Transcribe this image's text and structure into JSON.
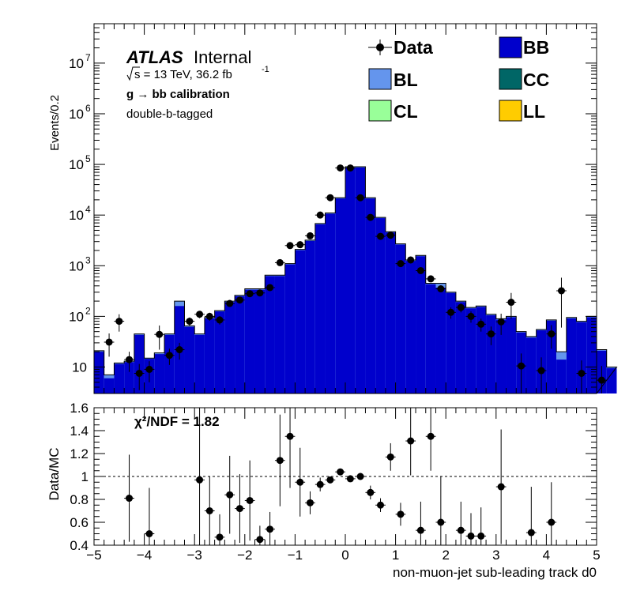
{
  "chart_data": [
    {
      "type": "histogram",
      "panel": "main",
      "ylabel": "Events/0.2",
      "ylog": true,
      "xlim": [
        -5,
        5
      ],
      "ylim": [
        3,
        60000000
      ],
      "y_ticks": [
        {
          "value": 10,
          "base": "10",
          "exp": ""
        },
        {
          "value": 100,
          "base": "10",
          "exp": "2"
        },
        {
          "value": 1000,
          "base": "10",
          "exp": "3"
        },
        {
          "value": 10000,
          "base": "10",
          "exp": "4"
        },
        {
          "value": 100000,
          "base": "10",
          "exp": "5"
        },
        {
          "value": 1000000,
          "base": "10",
          "exp": "6"
        },
        {
          "value": 10000000,
          "base": "10",
          "exp": "7"
        }
      ],
      "annotations": {
        "atlas": "ATLAS",
        "internal": "Internal",
        "energy_prefix": "s = 13 TeV, 36.2 fb",
        "energy_exp": "-1",
        "calibration": "g  → bb calibration",
        "tagging": "double-b-tagged"
      },
      "legend": {
        "data": "Data",
        "BB": "BB",
        "BL": "BL",
        "CC": "CC",
        "CL": "CL",
        "LL": "LL"
      },
      "colors": {
        "BB": "#0000cc",
        "BL": "#6495ed",
        "CC": "#006666",
        "CL": "#99ff99",
        "LL": "#ffcc00"
      },
      "bin_edges_start": -5,
      "bin_width": 0.2,
      "mc_total": [
        21,
        7,
        12,
        13,
        45,
        15,
        19,
        45,
        200,
        65,
        45,
        95,
        130,
        200,
        260,
        350,
        350,
        650,
        650,
        1100,
        2100,
        3200,
        6800,
        11000,
        22000,
        90000,
        90000,
        22000,
        9000,
        4700,
        2700,
        1300,
        1600,
        450,
        450,
        300,
        200,
        150,
        160,
        110,
        90,
        100,
        50,
        40,
        55,
        85,
        20,
        95,
        80,
        100,
        22,
        10
      ],
      "mc_bl": [
        1,
        1,
        0.5,
        0.5,
        2,
        0.5,
        1,
        2,
        40,
        3,
        2,
        4,
        5,
        8,
        10,
        14,
        14,
        25,
        25,
        40,
        80,
        120,
        250,
        400,
        800,
        3000,
        3000,
        800,
        300,
        160,
        90,
        50,
        60,
        18,
        80,
        10,
        8,
        6,
        6,
        5,
        4,
        4,
        2,
        2,
        2,
        3,
        6,
        4,
        3,
        4,
        1,
        0.5
      ],
      "data": [
        null,
        31,
        80,
        14,
        7.5,
        9,
        44,
        17,
        22,
        80,
        110,
        100,
        85,
        180,
        210,
        280,
        290,
        370,
        1150,
        2500,
        2600,
        3900,
        10000,
        22000,
        85000,
        85000,
        22000,
        9000,
        3800,
        4000,
        1100,
        1300,
        800,
        550,
        350,
        120,
        150,
        100,
        70,
        45,
        78,
        190,
        10.5,
        null,
        8.5,
        45,
        320,
        null,
        7.5,
        null,
        5.5,
        null
      ],
      "data_err": [
        null,
        15,
        30,
        6,
        4,
        4,
        22,
        6,
        8,
        15,
        18,
        18,
        16,
        22,
        25,
        28,
        30,
        35,
        60,
        90,
        90,
        110,
        180,
        260,
        500,
        500,
        260,
        170,
        110,
        110,
        60,
        65,
        50,
        40,
        30,
        30,
        30,
        25,
        20,
        18,
        35,
        100,
        8,
        null,
        7,
        22,
        260,
        null,
        6,
        null,
        5,
        null
      ]
    },
    {
      "type": "scatter",
      "panel": "ratio",
      "title": "χ²/NDF = 1.82",
      "ylabel": "Data/MC",
      "xlabel": "non-muon-jet sub-leading track d0",
      "xlim": [
        -5,
        5
      ],
      "ylim": [
        0.4,
        1.6
      ],
      "x_ticks": [
        "−5",
        "−4",
        "−3",
        "−2",
        "−1",
        "0",
        "1",
        "2",
        "3",
        "4",
        "5"
      ],
      "y_ticks": [
        "0.4",
        "0.6",
        "0.8",
        "1",
        "1.2",
        "1.4",
        "1.6"
      ],
      "reference_line": 1,
      "points": [
        {
          "x": -4.3,
          "y": 0.81,
          "err": 0.38
        },
        {
          "x": -3.9,
          "y": 0.5,
          "err": 0.4
        },
        {
          "x": -2.9,
          "y": 0.97,
          "err": 0.9
        },
        {
          "x": -2.7,
          "y": 0.7,
          "err": 0.3
        },
        {
          "x": -2.5,
          "y": 0.47,
          "err": 0.2
        },
        {
          "x": -2.3,
          "y": 0.84,
          "err": 0.34
        },
        {
          "x": -2.1,
          "y": 0.72,
          "err": 0.3
        },
        {
          "x": -1.9,
          "y": 0.79,
          "err": 0.35
        },
        {
          "x": -1.7,
          "y": 0.45,
          "err": 0.12
        },
        {
          "x": -1.5,
          "y": 0.54,
          "err": 0.15
        },
        {
          "x": -1.3,
          "y": 1.14,
          "err": 0.4
        },
        {
          "x": -1.1,
          "y": 1.35,
          "err": 0.45
        },
        {
          "x": -0.9,
          "y": 0.95,
          "err": 0.3
        },
        {
          "x": -0.7,
          "y": 0.77,
          "err": 0.1
        },
        {
          "x": -0.5,
          "y": 0.93,
          "err": 0.06
        },
        {
          "x": -0.3,
          "y": 0.97,
          "err": 0.03
        },
        {
          "x": -0.1,
          "y": 1.04,
          "err": 0.02
        },
        {
          "x": 0.1,
          "y": 0.98,
          "err": 0.02
        },
        {
          "x": 0.3,
          "y": 1.0,
          "err": 0.03
        },
        {
          "x": 0.5,
          "y": 0.86,
          "err": 0.06
        },
        {
          "x": 0.7,
          "y": 0.75,
          "err": 0.06
        },
        {
          "x": 0.9,
          "y": 1.17,
          "err": 0.12
        },
        {
          "x": 1.1,
          "y": 0.67,
          "err": 0.1
        },
        {
          "x": 1.3,
          "y": 1.31,
          "err": 0.3
        },
        {
          "x": 1.5,
          "y": 0.53,
          "err": 0.25
        },
        {
          "x": 1.7,
          "y": 1.35,
          "err": 0.3
        },
        {
          "x": 1.9,
          "y": 0.6,
          "err": 0.4
        },
        {
          "x": 2.3,
          "y": 0.53,
          "err": 0.25
        },
        {
          "x": 2.5,
          "y": 0.48,
          "err": 0.2
        },
        {
          "x": 2.7,
          "y": 0.48,
          "err": 0.25
        },
        {
          "x": 3.1,
          "y": 0.91,
          "err": 0.5
        },
        {
          "x": 3.7,
          "y": 0.51,
          "err": 0.4
        },
        {
          "x": 4.1,
          "y": 0.6,
          "err": 0.35
        }
      ]
    }
  ]
}
